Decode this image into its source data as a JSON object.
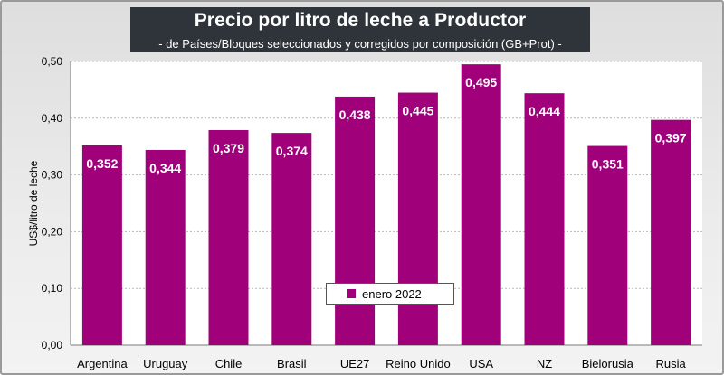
{
  "title": "Precio por litro de leche a Productor",
  "subtitle": "-  de Países/Bloques seleccionados y corregidos por composición (GB+Prot) -",
  "chart_data": {
    "type": "bar",
    "title": "Precio por litro de leche a Productor",
    "subtitle": "-  de Países/Bloques seleccionados y corregidos por composición (GB+Prot) -",
    "xlabel": "",
    "ylabel": "US$/litro de leche",
    "ylim": [
      0,
      0.5
    ],
    "yticks": [
      "0,00",
      "0,10",
      "0,20",
      "0,30",
      "0,40",
      "0,50"
    ],
    "ytick_values": [
      0,
      0.1,
      0.2,
      0.3,
      0.4,
      0.5
    ],
    "grid": true,
    "legend_position": "bottom-center",
    "categories": [
      "Argentina",
      "Uruguay",
      "Chile",
      "Brasil",
      "UE27",
      "Reino Unido",
      "USA",
      "NZ",
      "Bielorusia",
      "Rusia"
    ],
    "series": [
      {
        "name": "enero 2022",
        "color": "#a0007a",
        "values": [
          0.352,
          0.344,
          0.379,
          0.374,
          0.438,
          0.445,
          0.495,
          0.444,
          0.351,
          0.397
        ],
        "labels": [
          "0,352",
          "0,344",
          "0,379",
          "0,374",
          "0,438",
          "0,445",
          "0,495",
          "0,444",
          "0,351",
          "0,397"
        ]
      }
    ]
  }
}
